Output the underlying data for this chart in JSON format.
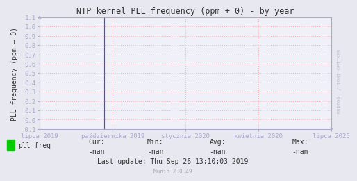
{
  "title": "NTP kernel PLL frequency (ppm + 0) - by year",
  "ylabel": "PLL frequency (ppm + 0)",
  "ylim": [
    -0.1,
    1.1
  ],
  "yticks": [
    -0.1,
    0.0,
    0.1,
    0.2,
    0.3,
    0.4,
    0.5,
    0.6,
    0.7,
    0.8,
    0.9,
    1.0,
    1.1
  ],
  "ytick_labels": [
    "-0.1",
    "0.0",
    "0.1",
    "0.2",
    "0.3",
    "0.4",
    "0.5",
    "0.6",
    "0.7",
    "0.8",
    "0.9",
    "1.0",
    "1.1"
  ],
  "xtick_labels": [
    "lipca 2019",
    "października 2019",
    "stycznia 2020",
    "kwietnia 2020",
    "lipca 2020"
  ],
  "xtick_positions": [
    0.0,
    0.25,
    0.5,
    0.75,
    1.0
  ],
  "bg_color": "#e8e8f0",
  "plot_bg_color": "#f0f0f8",
  "grid_color": "#ffaaaa",
  "axis_color": "#aaaacc",
  "title_color": "#333333",
  "tick_color": "#333333",
  "legend_label": "pll-freq",
  "legend_color": "#00cc00",
  "cur_val": "-nan",
  "min_val": "-nan",
  "avg_val": "-nan",
  "max_val": "-nan",
  "last_update": "Last update: Thu Sep 26 13:10:03 2019",
  "munin_version": "Munin 2.0.49",
  "watermark": "RRDTOOL / TOBI OETIKER",
  "vline_color": "#555577",
  "vline_x": 0.22
}
